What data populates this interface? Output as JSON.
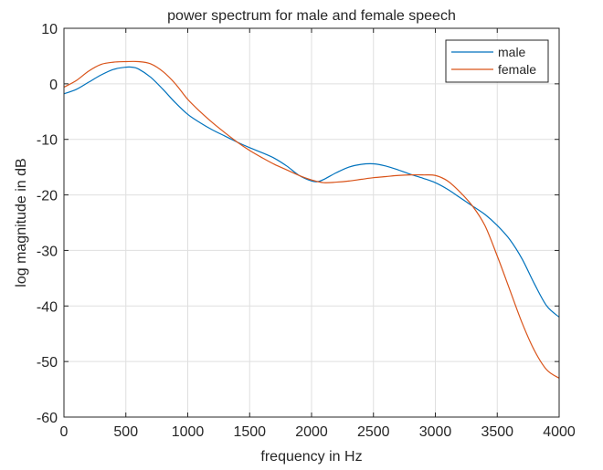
{
  "chart_data": {
    "type": "line",
    "title": "power spectrum for male and female speech",
    "xlabel": "frequency in Hz",
    "ylabel": "log magnitude in dB",
    "xlim": [
      0,
      4000
    ],
    "ylim": [
      -60,
      10
    ],
    "xticks": [
      0,
      500,
      1000,
      1500,
      2000,
      2500,
      3000,
      3500,
      4000
    ],
    "yticks": [
      -60,
      -50,
      -40,
      -30,
      -20,
      -10,
      0,
      10
    ],
    "grid": true,
    "legend_position": "top-right",
    "series": [
      {
        "name": "male",
        "color": "#0072BD",
        "x": [
          0,
          100,
          200,
          300,
          400,
          500,
          550,
          600,
          700,
          800,
          900,
          1000,
          1100,
          1200,
          1300,
          1400,
          1500,
          1600,
          1700,
          1800,
          1900,
          2000,
          2050,
          2100,
          2200,
          2300,
          2400,
          2500,
          2600,
          2700,
          2800,
          2900,
          3000,
          3100,
          3200,
          3300,
          3400,
          3500,
          3600,
          3700,
          3800,
          3900,
          4000
        ],
        "y": [
          -1.8,
          -1.0,
          0.3,
          1.6,
          2.6,
          3.0,
          3.0,
          2.7,
          1.2,
          -1.0,
          -3.4,
          -5.5,
          -7.0,
          -8.3,
          -9.4,
          -10.5,
          -11.5,
          -12.4,
          -13.4,
          -14.8,
          -16.5,
          -17.5,
          -17.6,
          -17.2,
          -16.0,
          -15.0,
          -14.5,
          -14.4,
          -14.8,
          -15.5,
          -16.3,
          -17.0,
          -17.8,
          -19.0,
          -20.5,
          -22.0,
          -23.5,
          -25.5,
          -28.0,
          -31.5,
          -36.0,
          -40.0,
          -42.0
        ]
      },
      {
        "name": "female",
        "color": "#D95319",
        "x": [
          0,
          100,
          200,
          300,
          400,
          500,
          600,
          700,
          800,
          900,
          1000,
          1100,
          1200,
          1300,
          1400,
          1500,
          1600,
          1700,
          1800,
          1900,
          2000,
          2100,
          2200,
          2300,
          2400,
          2500,
          2600,
          2700,
          2800,
          2900,
          3000,
          3100,
          3200,
          3300,
          3400,
          3500,
          3600,
          3700,
          3800,
          3900,
          4000
        ],
        "y": [
          -0.6,
          0.6,
          2.3,
          3.5,
          3.9,
          4.0,
          4.0,
          3.6,
          2.2,
          0.0,
          -2.8,
          -5.0,
          -7.0,
          -8.8,
          -10.5,
          -12.0,
          -13.3,
          -14.5,
          -15.5,
          -16.5,
          -17.3,
          -17.8,
          -17.7,
          -17.5,
          -17.2,
          -16.9,
          -16.7,
          -16.5,
          -16.4,
          -16.4,
          -16.5,
          -17.5,
          -19.5,
          -22.0,
          -25.5,
          -31.0,
          -37.0,
          -43.0,
          -48.0,
          -51.5,
          -53.0
        ]
      }
    ]
  }
}
